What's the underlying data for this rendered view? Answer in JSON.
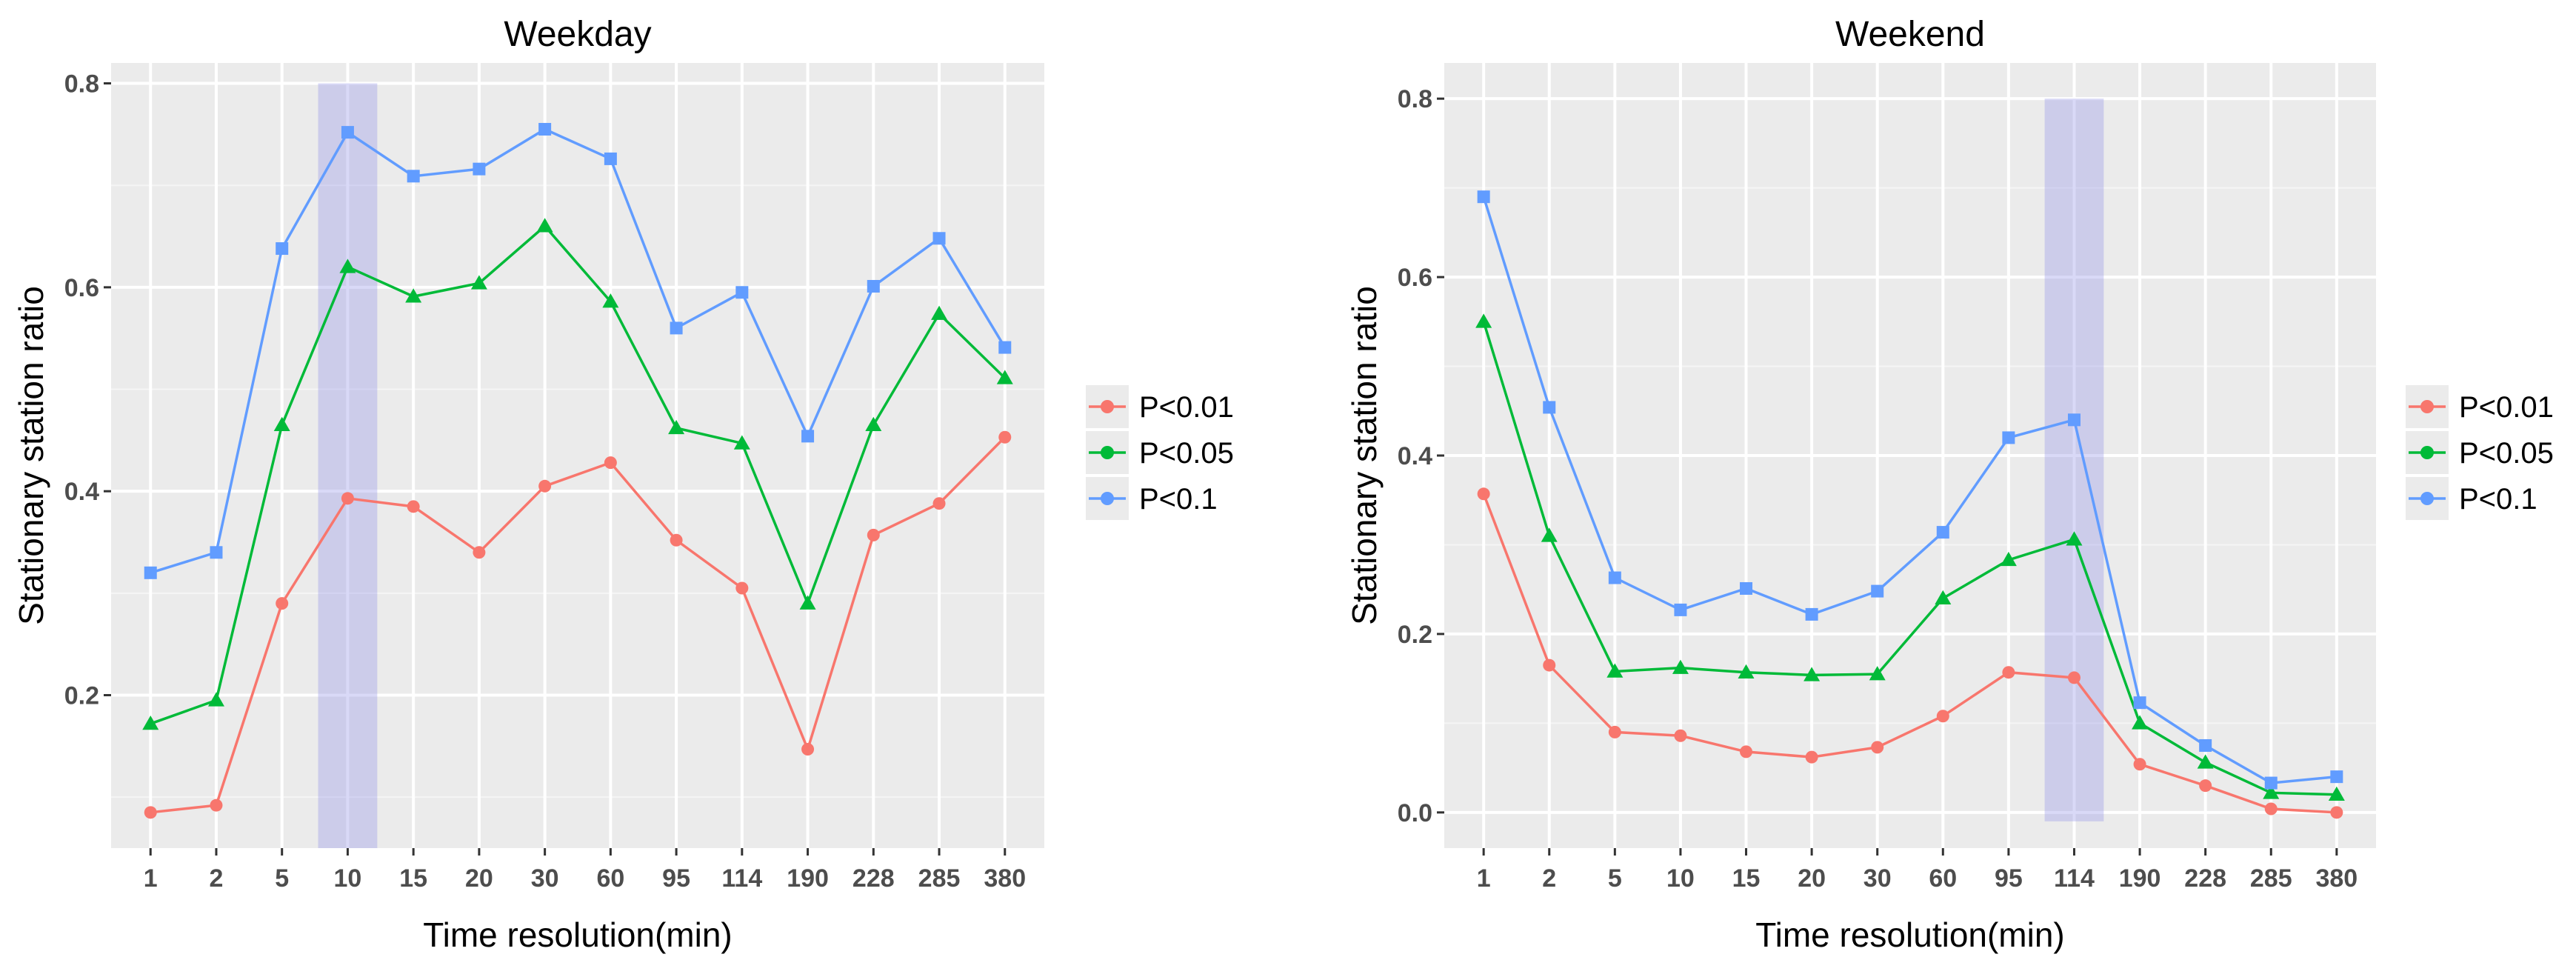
{
  "chart_data": [
    {
      "type": "line",
      "title": "Weekday",
      "xlabel": "Time resolution(min)",
      "ylabel": "Stationary station ratio",
      "categories": [
        "1",
        "2",
        "5",
        "10",
        "15",
        "20",
        "30",
        "60",
        "95",
        "114",
        "190",
        "228",
        "285",
        "380"
      ],
      "ylim": [
        0.05,
        0.82
      ],
      "yticks": [
        0.2,
        0.4,
        0.6,
        0.8
      ],
      "ytick_labels": [
        "0.2",
        "0.4",
        "0.6",
        "0.8"
      ],
      "highlight_category": "10",
      "highlight_yrange": [
        0.05,
        0.8
      ],
      "legend_position": "right",
      "series": [
        {
          "name": "P<0.01",
          "color": "#F8766D",
          "marker": "circle",
          "values": [
            0.085,
            0.092,
            0.29,
            0.393,
            0.385,
            0.34,
            0.405,
            0.428,
            0.352,
            0.305,
            0.147,
            0.357,
            0.388,
            0.453
          ]
        },
        {
          "name": "P<0.05",
          "color": "#00BA38",
          "marker": "triangle",
          "values": [
            0.172,
            0.195,
            0.465,
            0.62,
            0.591,
            0.604,
            0.66,
            0.586,
            0.462,
            0.447,
            0.29,
            0.465,
            0.574,
            0.511
          ]
        },
        {
          "name": "P<0.1",
          "color": "#619CFF",
          "marker": "square",
          "values": [
            0.32,
            0.34,
            0.638,
            0.752,
            0.709,
            0.716,
            0.755,
            0.726,
            0.56,
            0.595,
            0.454,
            0.601,
            0.648,
            0.541
          ]
        }
      ]
    },
    {
      "type": "line",
      "title": "Weekend",
      "xlabel": "Time resolution(min)",
      "ylabel": "Stationary station ratio",
      "categories": [
        "1",
        "2",
        "5",
        "10",
        "15",
        "20",
        "30",
        "60",
        "95",
        "114",
        "190",
        "228",
        "285",
        "380"
      ],
      "ylim": [
        -0.04,
        0.84
      ],
      "yticks": [
        0.0,
        0.2,
        0.4,
        0.6,
        0.8
      ],
      "ytick_labels": [
        "0.0",
        "0.2",
        "0.4",
        "0.6",
        "0.8"
      ],
      "highlight_category": "114",
      "highlight_yrange": [
        -0.01,
        0.8
      ],
      "legend_position": "right",
      "series": [
        {
          "name": "P<0.01",
          "color": "#F8766D",
          "marker": "circle",
          "values": [
            0.357,
            0.165,
            0.09,
            0.086,
            0.068,
            0.062,
            0.073,
            0.108,
            0.157,
            0.151,
            0.054,
            0.03,
            0.004,
            0.0
          ]
        },
        {
          "name": "P<0.05",
          "color": "#00BA38",
          "marker": "triangle",
          "values": [
            0.55,
            0.31,
            0.158,
            0.162,
            0.157,
            0.154,
            0.155,
            0.24,
            0.283,
            0.306,
            0.1,
            0.056,
            0.022,
            0.02
          ]
        },
        {
          "name": "P<0.1",
          "color": "#619CFF",
          "marker": "square",
          "values": [
            0.69,
            0.454,
            0.263,
            0.227,
            0.251,
            0.222,
            0.248,
            0.314,
            0.42,
            0.44,
            0.123,
            0.075,
            0.033,
            0.04
          ]
        }
      ]
    }
  ]
}
